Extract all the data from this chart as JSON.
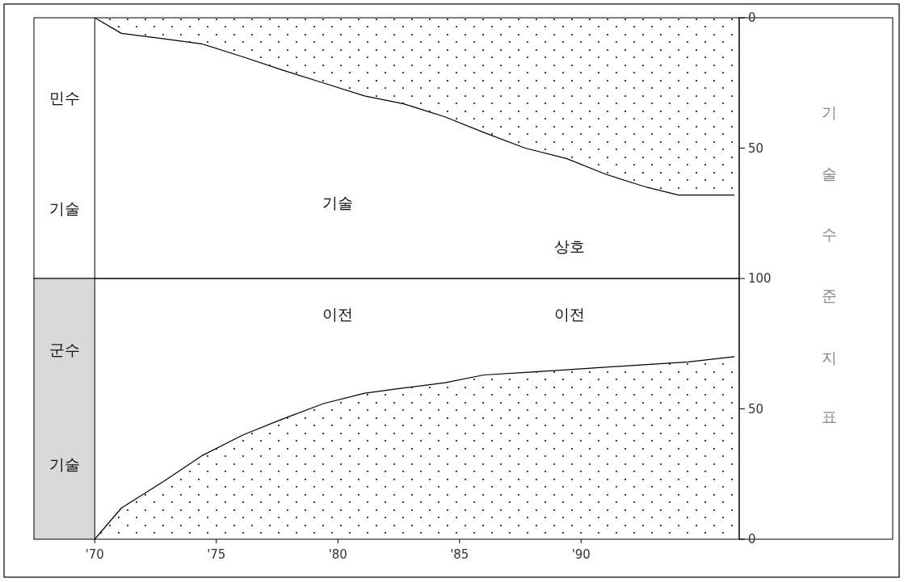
{
  "chart_data": [
    {
      "type": "area",
      "ylabel": "기술수준지표",
      "tick_labels": "y",
      "xlim": [
        67.5,
        96.5
      ],
      "ylim": [
        100,
        0
      ],
      "yticks": [
        0,
        50,
        100
      ],
      "x": [
        70,
        71.1,
        72.8,
        74.4,
        76.1,
        77.7,
        79.4,
        81.1,
        82.7,
        84.4,
        86,
        87.7,
        89.4,
        91,
        92.7,
        94,
        95,
        96.3
      ],
      "series": [
        {
          "color": "#000000",
          "values": [
            0,
            6,
            8,
            10,
            15,
            20,
            25,
            30,
            33,
            38,
            44,
            50,
            54,
            60,
            65,
            68,
            68,
            68
          ]
        }
      ],
      "ref_lines": [
        {
          "axis": "x",
          "value": 70
        }
      ],
      "annotations": [
        "민수",
        "기술",
        "기술",
        "상호"
      ]
    },
    {
      "type": "area",
      "xlim": [
        67.5,
        96.5
      ],
      "ylim": [
        0,
        100
      ],
      "yticks": [
        0,
        50
      ],
      "xticks": [
        {
          "value": 70,
          "label": "'70"
        },
        {
          "value": 75,
          "label": "'75"
        },
        {
          "value": 80,
          "label": "'80"
        },
        {
          "value": 85,
          "label": "'85"
        },
        {
          "value": 90,
          "label": "'90"
        }
      ],
      "x": [
        70,
        71.1,
        72.8,
        74.4,
        76.1,
        77.7,
        79.4,
        81.1,
        82.7,
        84.4,
        86,
        87.7,
        89.4,
        91,
        92.7,
        94.4,
        96.3
      ],
      "series": [
        {
          "color": "#000000",
          "values": [
            0,
            12,
            22,
            32,
            40,
            46,
            52,
            56,
            58,
            60,
            63,
            64,
            65,
            66,
            67,
            68,
            70
          ]
        }
      ],
      "bands": [
        {
          "axis": "x",
          "from": 67.5,
          "to": 70,
          "color": "#d9d9d9"
        }
      ],
      "annotations": [
        "군수",
        "기술",
        "이전",
        "이전"
      ]
    }
  ]
}
